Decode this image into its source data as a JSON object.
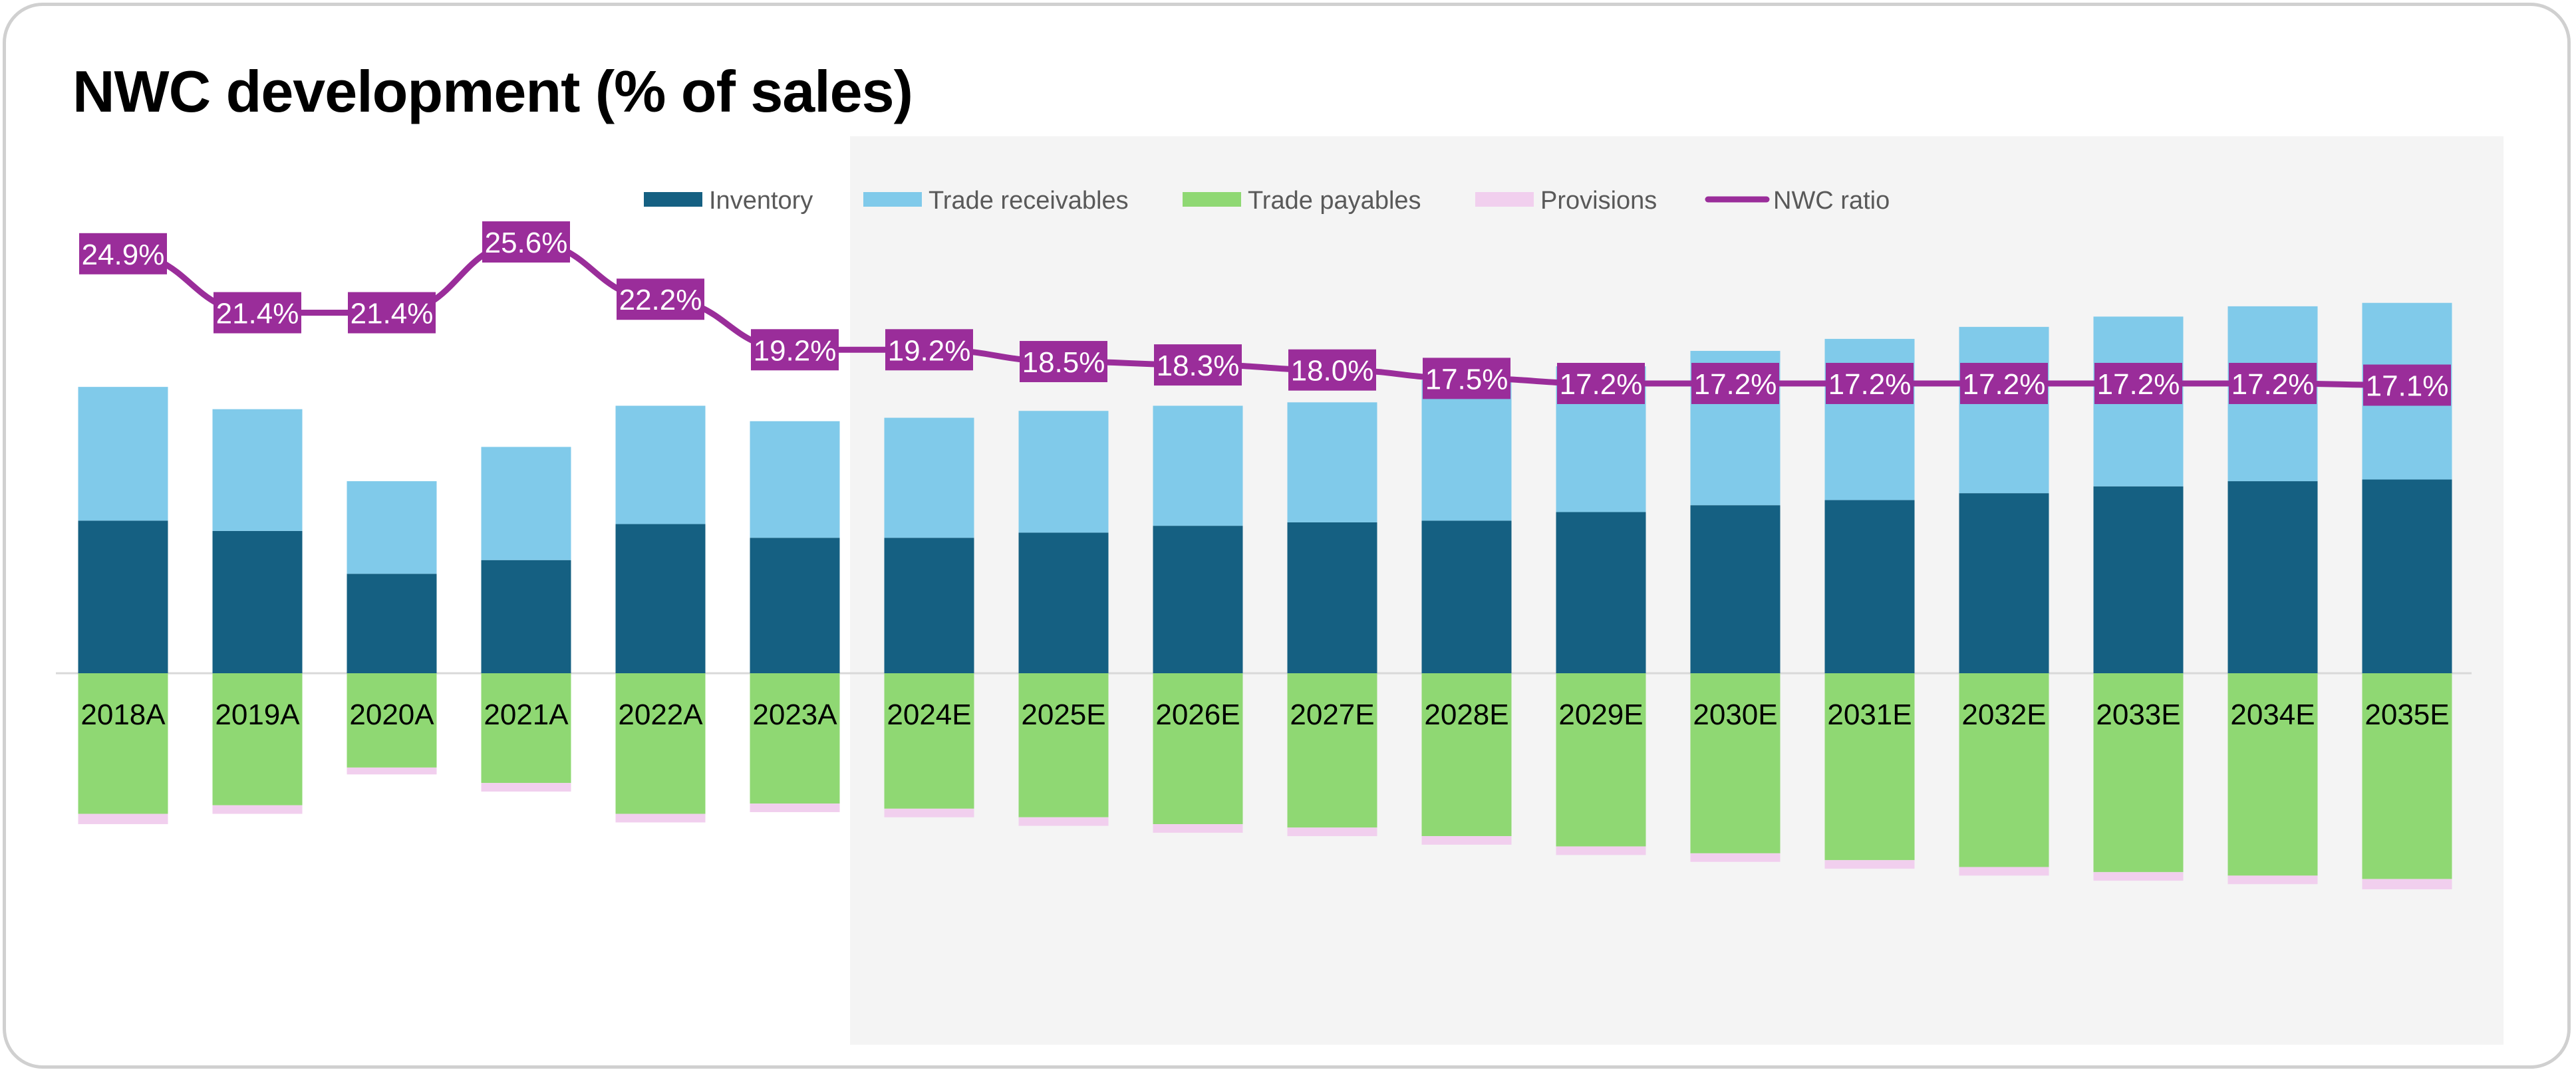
{
  "title": "NWC development (% of sales)",
  "colors": {
    "inventory": "#156082",
    "trade_receivables": "#80CAEA",
    "trade_payables": "#8FD873",
    "provisions": "#F1CFEE",
    "nwc_ratio": "#9A2D9A",
    "forecast_shade": "#F4F4F4",
    "axis_line": "#D9D9D9"
  },
  "legend": [
    {
      "key": "inventory",
      "label": "Inventory",
      "kind": "bar"
    },
    {
      "key": "trade_receivables",
      "label": "Trade receivables",
      "kind": "bar"
    },
    {
      "key": "trade_payables",
      "label": "Trade payables",
      "kind": "bar"
    },
    {
      "key": "provisions",
      "label": "Provisions",
      "kind": "bar"
    },
    {
      "key": "nwc_ratio",
      "label": "NWC ratio",
      "kind": "line"
    }
  ],
  "chart_data": {
    "type": "bar",
    "stacked": true,
    "title": "NWC development (% of sales)",
    "legend_position": "top",
    "forecast_shading_from": "2024E",
    "categories": [
      "2018A",
      "2019A",
      "2020A",
      "2021A",
      "2022A",
      "2023A",
      "2024E",
      "2025E",
      "2026E",
      "2027E",
      "2028E",
      "2029E",
      "2030E",
      "2031E",
      "2032E",
      "2033E",
      "2034E",
      "2035E"
    ],
    "bar_ylim": [
      -14,
      24
    ],
    "series": [
      {
        "name": "Inventory",
        "key": "inventory",
        "values": [
          8.9,
          8.3,
          5.8,
          6.6,
          8.7,
          7.9,
          7.9,
          8.2,
          8.6,
          8.8,
          8.9,
          9.4,
          9.8,
          10.1,
          10.5,
          10.9,
          11.2,
          11.3
        ]
      },
      {
        "name": "Trade receivables",
        "key": "trade_receivables",
        "values": [
          7.8,
          7.1,
          5.4,
          6.6,
          6.9,
          6.8,
          7.0,
          7.1,
          7.0,
          7.0,
          8.2,
          8.5,
          9.0,
          9.4,
          9.7,
          9.9,
          10.2,
          10.3
        ]
      },
      {
        "name": "Trade payables",
        "key": "trade_payables",
        "values": [
          -8.2,
          -7.7,
          -5.5,
          -6.4,
          -8.2,
          -7.6,
          -7.9,
          -8.4,
          -8.8,
          -9.0,
          -9.5,
          -10.1,
          -10.5,
          -10.9,
          -11.3,
          -11.6,
          -11.8,
          -12.0
        ]
      },
      {
        "name": "Provisions",
        "key": "provisions",
        "values": [
          -0.6,
          -0.5,
          -0.4,
          -0.5,
          -0.5,
          -0.5,
          -0.5,
          -0.5,
          -0.5,
          -0.5,
          -0.5,
          -0.5,
          -0.5,
          -0.5,
          -0.5,
          -0.5,
          -0.5,
          -0.6
        ]
      }
    ],
    "line": {
      "name": "NWC ratio",
      "key": "nwc_ratio",
      "values": [
        24.9,
        21.4,
        21.4,
        25.6,
        22.2,
        19.2,
        19.2,
        18.5,
        18.3,
        18.0,
        17.5,
        17.2,
        17.2,
        17.2,
        17.2,
        17.2,
        17.2,
        17.1
      ],
      "labels": [
        "24.9%",
        "21.4%",
        "21.4%",
        "25.6%",
        "22.2%",
        "19.2%",
        "19.2%",
        "18.5%",
        "18.3%",
        "18.0%",
        "17.5%",
        "17.2%",
        "17.2%",
        "17.2%",
        "17.2%",
        "17.2%",
        "17.2%",
        "17.1%"
      ],
      "ylim": [
        0,
        35
      ]
    }
  }
}
